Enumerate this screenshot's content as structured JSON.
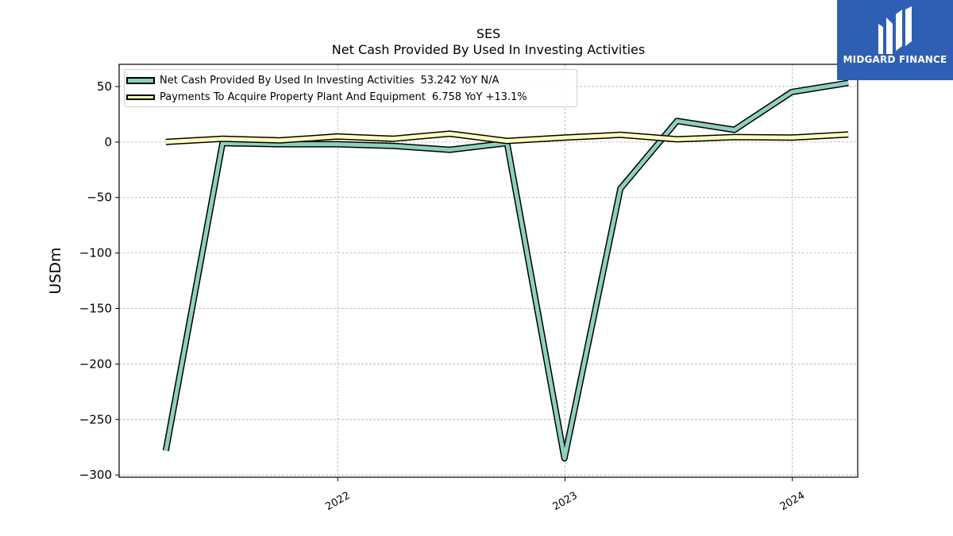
{
  "header": {
    "ticker": "SES",
    "subtitle": "Net Cash Provided By Used In Investing Activities"
  },
  "logo": {
    "text": "MIDGARD FINANCE",
    "background_color": "#2f5fb3"
  },
  "legend": {
    "items": [
      {
        "label": "Net Cash Provided By Used In Investing Activities",
        "value": "53.242 YoY N/A"
      },
      {
        "label": "Payments To Acquire Property Plant And Equipment",
        "value": "6.758 YoY +13.1%"
      }
    ]
  },
  "chart_data": {
    "type": "line",
    "title": "SES",
    "subtitle": "Net Cash Provided By Used In Investing Activities",
    "ylabel": "USDm",
    "xlabel": "",
    "ylim": [
      -302,
      70
    ],
    "yticks": [
      50,
      0,
      -50,
      -100,
      -150,
      -200,
      -250,
      -300
    ],
    "ytick_labels": [
      "50",
      "0",
      "−50",
      "−100",
      "−150",
      "−200",
      "−250",
      "−300"
    ],
    "xlim": [
      "2021-01-15",
      "2024-04-15"
    ],
    "xticks": [
      "2022-01-01",
      "2023-01-01",
      "2024-01-01"
    ],
    "xtick_labels": [
      "2022",
      "2023",
      "2024"
    ],
    "grid": true,
    "legend_position": "top-left",
    "x": [
      "2021-03-31",
      "2021-06-30",
      "2021-09-30",
      "2021-12-31",
      "2022-03-31",
      "2022-06-30",
      "2022-09-30",
      "2022-12-31",
      "2023-03-31",
      "2023-06-30",
      "2023-09-30",
      "2023-12-31",
      "2024-03-31"
    ],
    "series": [
      {
        "name": "Net Cash Provided By Used In Investing Activities",
        "color": "#8ecfc0",
        "values": [
          -278,
          -1,
          -2,
          -2,
          -3.5,
          -7,
          -1,
          -285,
          -42,
          19,
          11,
          45,
          53.242
        ]
      },
      {
        "name": "Payments To Acquire Property Plant And Equipment",
        "color": "#ffffbf",
        "values": [
          0,
          3,
          1.5,
          5,
          3,
          7.5,
          1,
          4,
          6.5,
          2.5,
          4.5,
          4,
          6.758
        ]
      }
    ]
  }
}
